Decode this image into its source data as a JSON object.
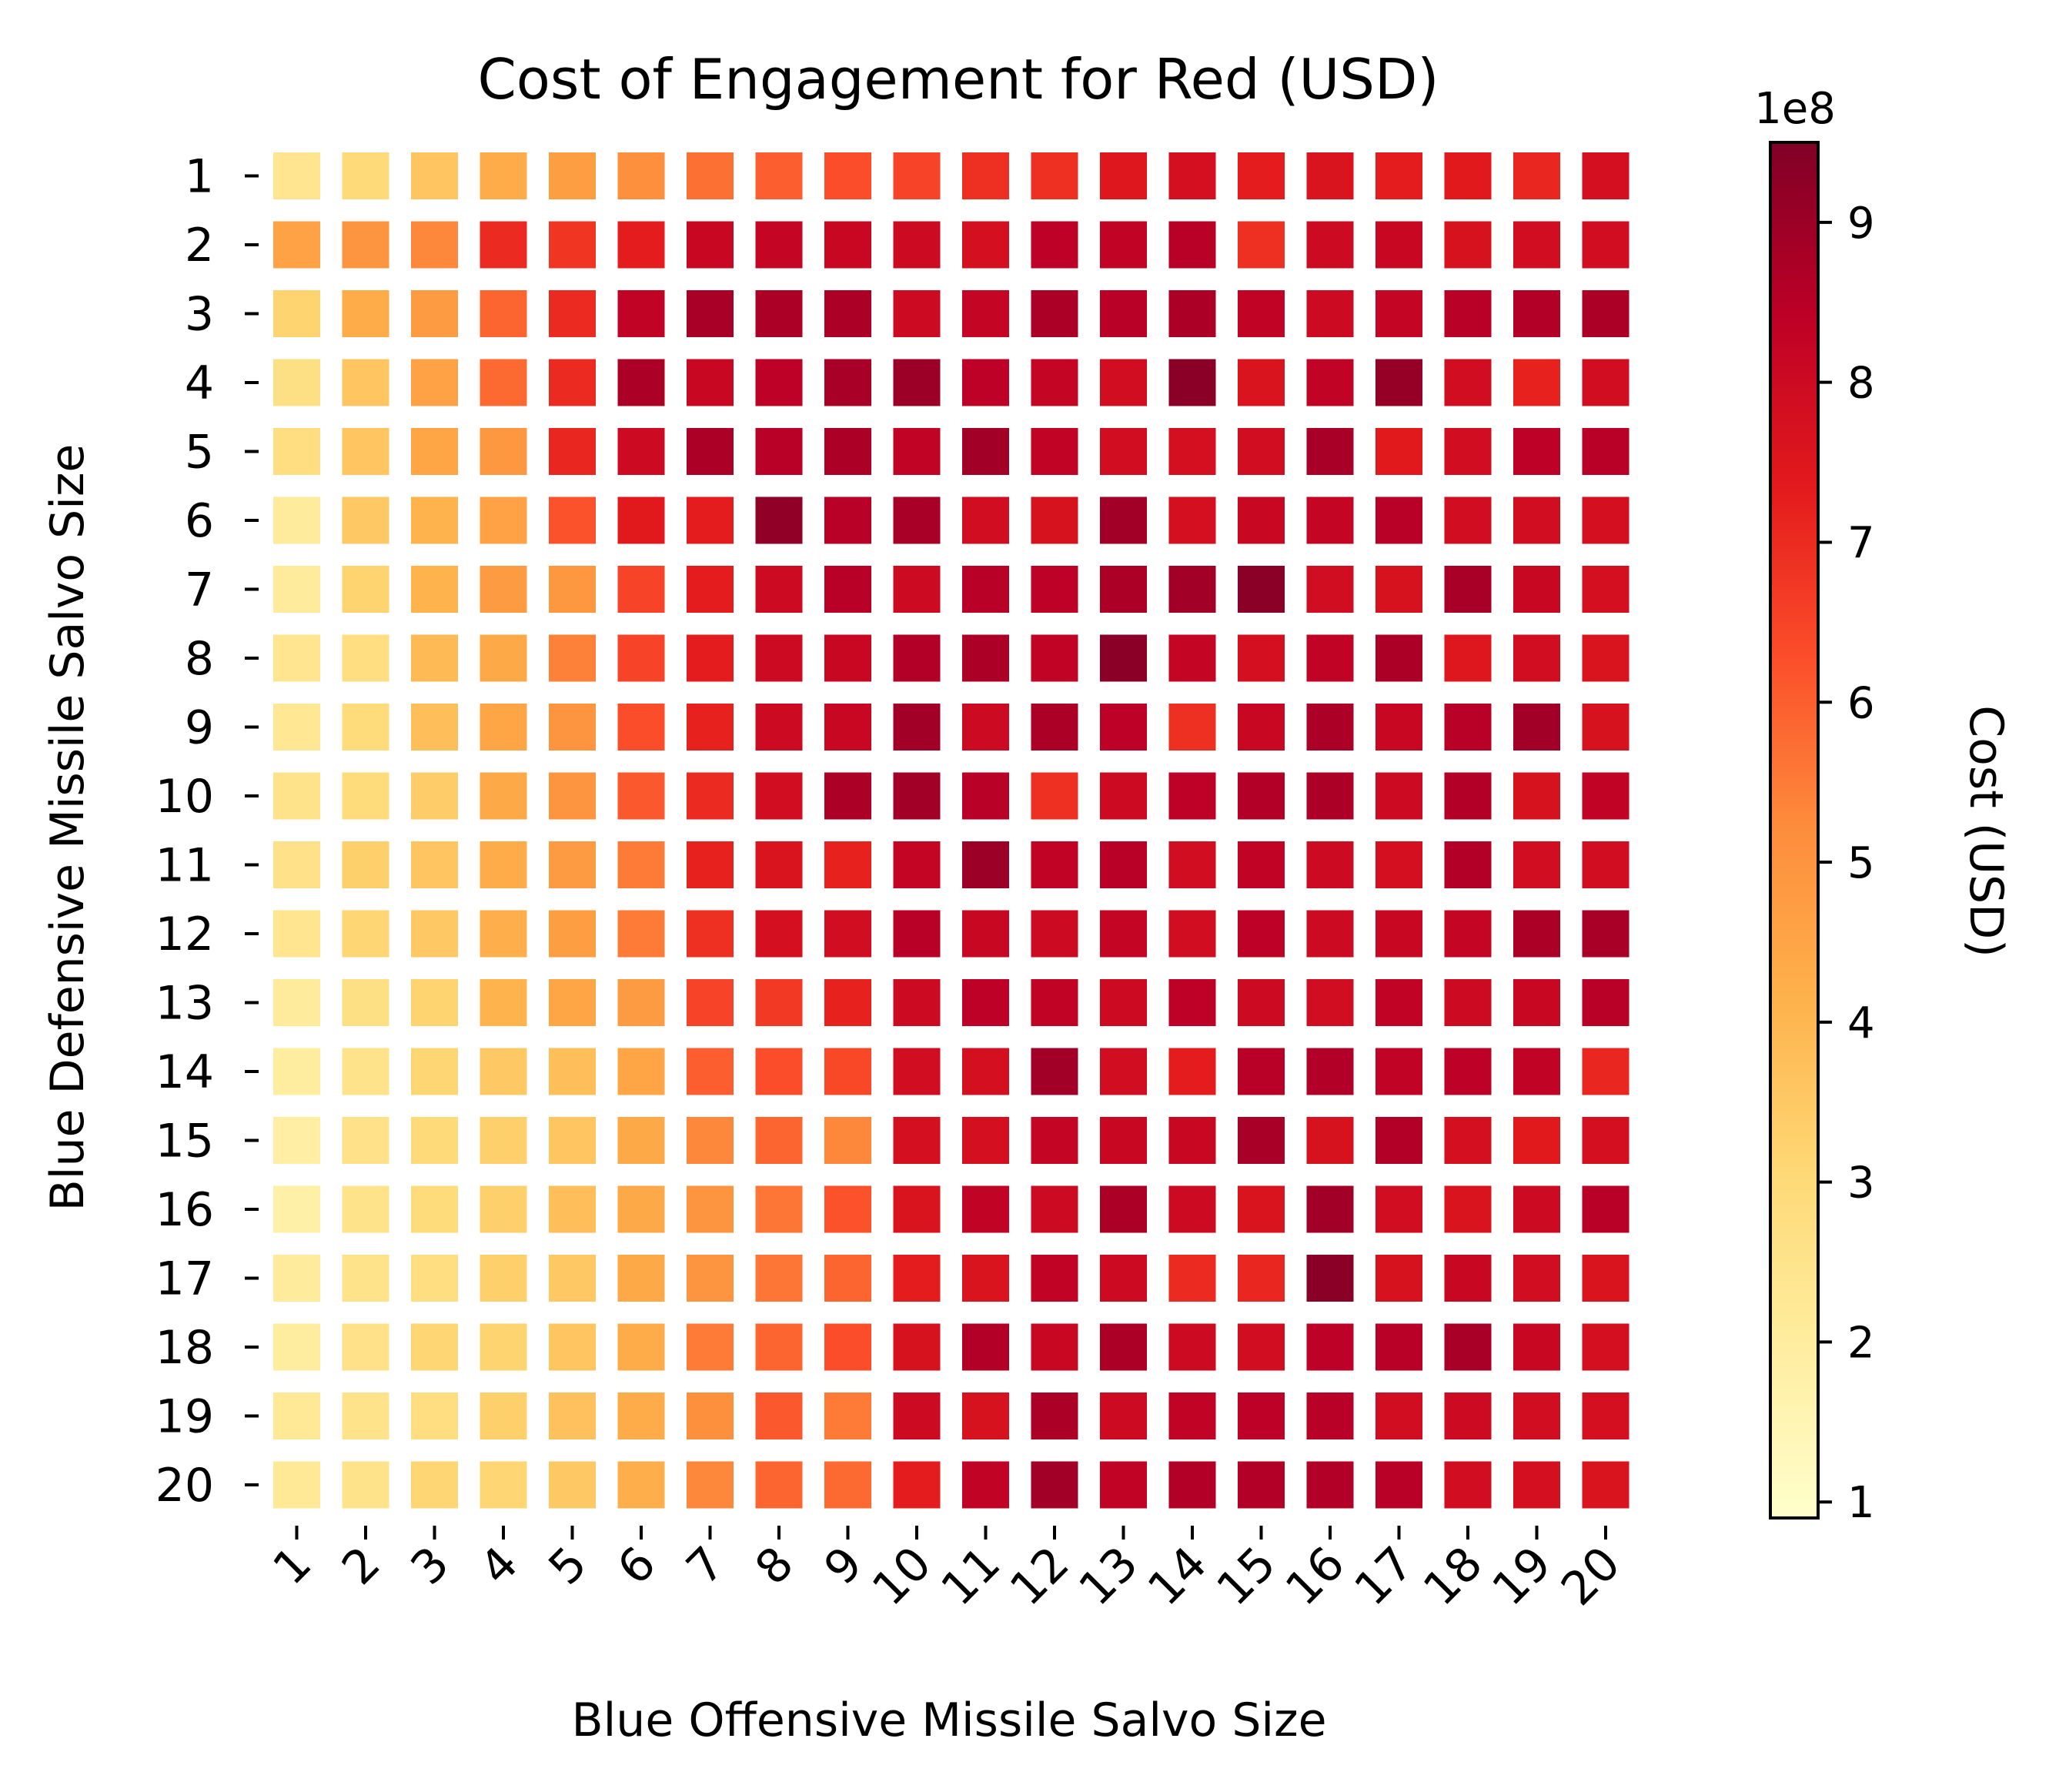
{
  "chart_data": {
    "type": "heatmap",
    "title": "Cost of Engagement for Red (USD)",
    "xlabel": "Blue Offensive Missile Salvo Size",
    "ylabel": "Blue Defensive Missile Salvo Size",
    "x": [
      "1",
      "2",
      "3",
      "4",
      "5",
      "6",
      "7",
      "8",
      "9",
      "10",
      "11",
      "12",
      "13",
      "14",
      "15",
      "16",
      "17",
      "18",
      "19",
      "20"
    ],
    "y": [
      "1",
      "2",
      "3",
      "4",
      "5",
      "6",
      "7",
      "8",
      "9",
      "10",
      "11",
      "12",
      "13",
      "14",
      "15",
      "16",
      "17",
      "18",
      "19",
      "20"
    ],
    "colorbar": {
      "label": "Cost (USD)",
      "offset_label": "1e8",
      "ticks": [
        "1",
        "2",
        "3",
        "4",
        "5",
        "6",
        "7",
        "8",
        "9"
      ],
      "range": [
        0.9,
        9.5
      ],
      "colormap": "YlOrRd",
      "colors": [
        "#ffffcc",
        "#ffeda0",
        "#fed976",
        "#feb24c",
        "#fd8d3c",
        "#fc4e2a",
        "#e31a1c",
        "#bd0026",
        "#800026"
      ]
    },
    "values_1e8": [
      [
        2.4,
        3.0,
        3.6,
        4.3,
        4.7,
        5.1,
        5.7,
        6.0,
        6.3,
        6.5,
        6.9,
        6.9,
        7.5,
        7.8,
        7.3,
        7.6,
        7.3,
        7.4,
        7.1,
        7.8
      ],
      [
        4.6,
        5.0,
        5.3,
        7.0,
        6.8,
        7.3,
        8.1,
        8.2,
        8.1,
        8.0,
        7.8,
        8.4,
        8.3,
        8.5,
        6.9,
        8.0,
        8.1,
        7.7,
        7.9,
        7.9
      ],
      [
        3.2,
        4.3,
        4.8,
        5.9,
        7.0,
        8.3,
        8.8,
        8.7,
        8.7,
        8.0,
        8.2,
        8.7,
        8.5,
        8.7,
        8.3,
        8.0,
        8.2,
        8.5,
        8.6,
        8.7
      ],
      [
        2.7,
        3.6,
        4.6,
        5.8,
        7.0,
        8.7,
        8.1,
        8.4,
        8.8,
        9.0,
        8.4,
        8.2,
        7.9,
        9.3,
        7.6,
        8.3,
        9.1,
        7.9,
        7.2,
        7.9
      ],
      [
        2.8,
        3.6,
        4.5,
        4.9,
        7.1,
        8.0,
        8.7,
        8.5,
        8.7,
        8.3,
        8.9,
        8.3,
        7.9,
        7.8,
        7.9,
        8.8,
        7.4,
        7.9,
        8.4,
        8.5
      ],
      [
        2.1,
        3.5,
        4.1,
        4.6,
        6.2,
        7.4,
        7.3,
        9.2,
        8.5,
        8.8,
        7.9,
        7.7,
        8.9,
        7.8,
        8.1,
        8.2,
        8.5,
        7.9,
        7.9,
        7.8
      ],
      [
        2.1,
        3.2,
        4.1,
        4.8,
        4.9,
        6.5,
        7.3,
        8.0,
        8.5,
        8.0,
        8.5,
        8.4,
        8.7,
        8.9,
        9.3,
        7.9,
        7.7,
        8.8,
        8.1,
        7.8
      ],
      [
        2.4,
        2.8,
        3.9,
        4.4,
        5.4,
        6.5,
        7.3,
        8.0,
        8.1,
        8.6,
        8.7,
        8.3,
        9.3,
        8.2,
        7.8,
        8.3,
        8.7,
        7.5,
        7.9,
        7.6
      ],
      [
        2.3,
        2.9,
        3.8,
        4.5,
        5.0,
        6.3,
        7.2,
        8.0,
        8.1,
        8.9,
        8.0,
        8.7,
        8.4,
        6.9,
        8.1,
        8.7,
        8.1,
        8.5,
        8.9,
        7.7
      ],
      [
        2.5,
        2.9,
        3.4,
        4.4,
        5.0,
        6.1,
        7.0,
        7.9,
        8.7,
        8.9,
        8.5,
        6.9,
        8.0,
        8.4,
        8.6,
        8.7,
        8.0,
        8.6,
        7.7,
        8.3
      ],
      [
        2.6,
        3.3,
        3.6,
        4.3,
        4.8,
        5.5,
        7.2,
        7.6,
        7.2,
        8.2,
        9.0,
        8.3,
        8.5,
        7.9,
        8.3,
        8.0,
        7.8,
        8.6,
        7.9,
        7.9
      ],
      [
        2.4,
        3.1,
        3.5,
        4.2,
        4.7,
        5.5,
        6.9,
        7.8,
        7.9,
        8.5,
        8.1,
        8.0,
        8.2,
        7.9,
        8.4,
        8.0,
        8.1,
        8.2,
        8.7,
        8.8
      ],
      [
        2.1,
        2.7,
        3.2,
        4.1,
        4.5,
        4.8,
        6.5,
        6.7,
        7.2,
        8.0,
        8.4,
        8.3,
        8.0,
        8.4,
        8.0,
        7.9,
        8.3,
        8.0,
        8.1,
        8.5
      ],
      [
        2.0,
        2.5,
        3.1,
        3.5,
        3.8,
        4.5,
        6.0,
        6.3,
        6.4,
        7.9,
        7.8,
        8.9,
        7.9,
        7.3,
        8.5,
        8.6,
        8.3,
        8.4,
        8.3,
        7.1
      ],
      [
        1.9,
        2.6,
        3.0,
        3.3,
        3.6,
        4.4,
        5.3,
        5.9,
        5.3,
        7.8,
        7.8,
        8.2,
        8.1,
        8.1,
        8.8,
        7.7,
        8.6,
        7.8,
        7.4,
        7.8
      ],
      [
        1.8,
        2.5,
        2.9,
        3.3,
        3.8,
        4.4,
        5.0,
        5.6,
        6.2,
        7.6,
        8.3,
        8.0,
        8.7,
        8.0,
        7.6,
        8.9,
        7.9,
        7.6,
        8.0,
        8.5
      ],
      [
        2.1,
        2.5,
        2.8,
        3.3,
        3.5,
        4.4,
        5.0,
        5.6,
        5.9,
        7.3,
        7.6,
        8.3,
        8.0,
        7.0,
        7.1,
        9.3,
        7.7,
        8.1,
        7.9,
        7.6
      ],
      [
        2.0,
        2.6,
        3.1,
        3.2,
        3.6,
        4.3,
        5.5,
        5.9,
        6.3,
        7.7,
        8.6,
        8.1,
        8.7,
        8.0,
        7.9,
        8.4,
        8.5,
        8.8,
        8.1,
        7.8
      ],
      [
        2.2,
        2.5,
        2.8,
        3.3,
        3.7,
        4.3,
        5.1,
        6.1,
        5.5,
        8.0,
        7.7,
        8.7,
        8.0,
        8.3,
        8.4,
        8.5,
        7.9,
        8.0,
        7.9,
        7.8
      ],
      [
        2.2,
        2.5,
        3.1,
        3.1,
        3.5,
        4.2,
        5.3,
        5.9,
        5.8,
        7.3,
        8.3,
        8.9,
        8.3,
        8.6,
        8.6,
        8.6,
        8.5,
        7.9,
        7.8,
        7.6
      ]
    ]
  }
}
